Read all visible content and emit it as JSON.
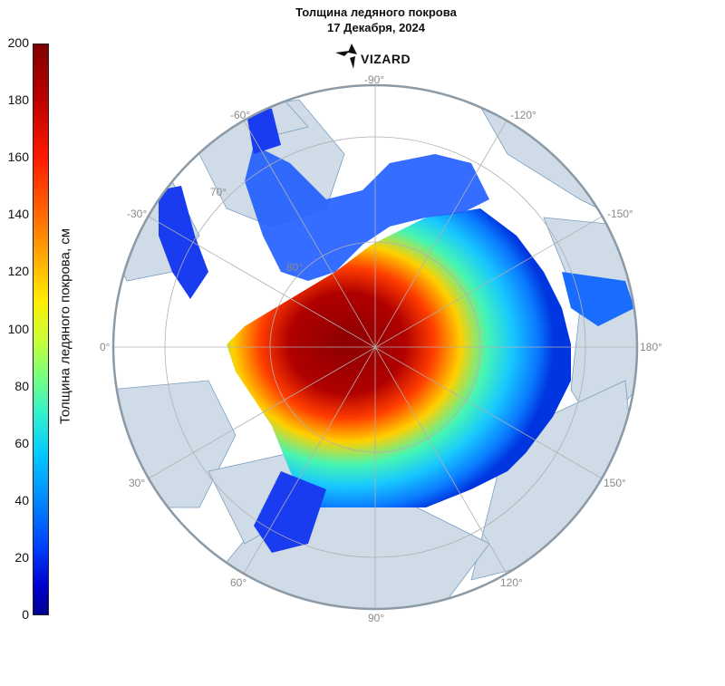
{
  "title": "Толщина ледяного покрова",
  "date": "17 Декабря, 2024",
  "logo": "VIZARD",
  "colorbar": {
    "label": "Толщина ледяного покрова, см",
    "min": 0,
    "max": 200,
    "ticks": [
      "200",
      "180",
      "160",
      "140",
      "120",
      "100",
      "80",
      "60",
      "40",
      "20",
      "0"
    ],
    "colors": [
      "#800000",
      "#ff1a00",
      "#ffb000",
      "#ffee00",
      "#7aff7c",
      "#00c8ff",
      "#0040ff",
      "#000090"
    ]
  },
  "map": {
    "projection": "north-polar-stereographic",
    "land_color": "#cfdbe6",
    "coast_color": "#7a9fc0",
    "longitude_labels": [
      "-90°",
      "-60°",
      "-120°",
      "-30°",
      "-150°",
      "0°",
      "180°",
      "30°",
      "150°",
      "60°",
      "120°",
      "90°"
    ],
    "latitude_labels": [
      "70°",
      "80°"
    ]
  }
}
